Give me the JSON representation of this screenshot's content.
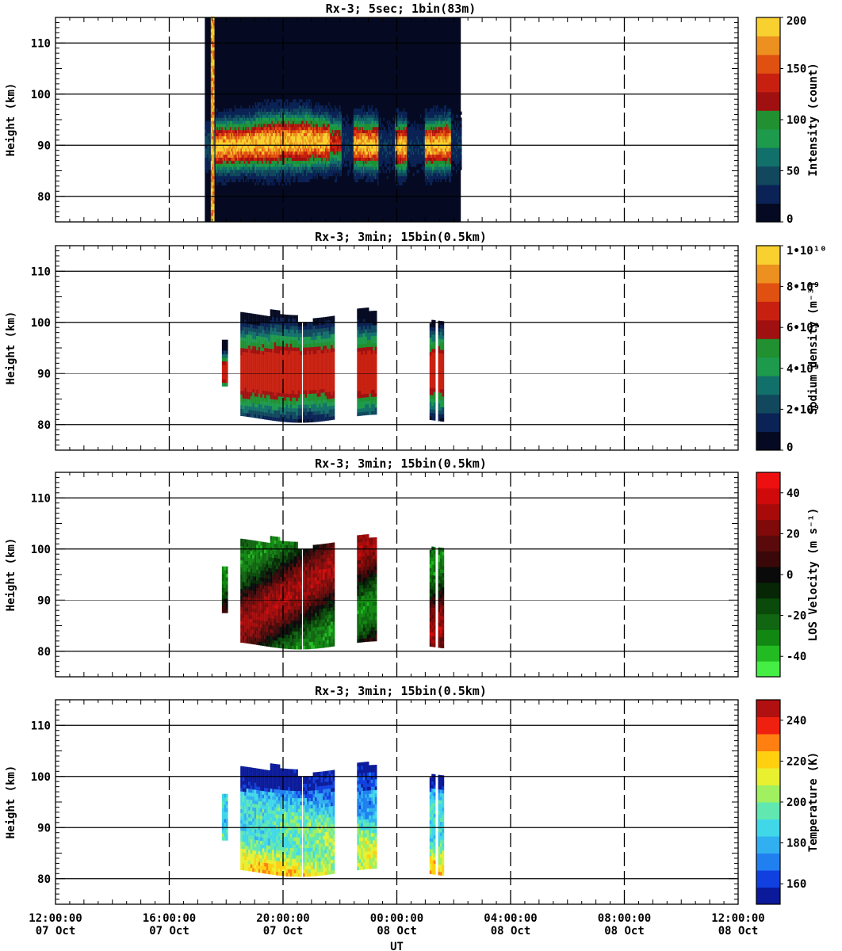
{
  "chart_data": [
    {
      "type": "heatmap",
      "title": "Rx-3;  5sec; 1bin(83m)",
      "ylabel": "Height (km)",
      "ylim": [
        75,
        115
      ],
      "yticks": [
        "80",
        "90",
        "100",
        "110"
      ],
      "colorbar": {
        "label": "Intensity (count)",
        "ticks": [
          "0",
          "50",
          "100",
          "150",
          "200"
        ],
        "range": [
          0,
          200
        ],
        "colors": [
          "#050a22",
          "#0a2255",
          "#11485e",
          "#12706a",
          "#1d9a4c",
          "#209030",
          "#a01010",
          "#c82010",
          "#e05010",
          "#ec9020",
          "#f8d030"
        ]
      },
      "data_extent": {
        "t_start_h": 5.25,
        "t_end_h": 14.25
      },
      "layer": {
        "center_km": 90,
        "half_width_km": 5
      },
      "segments_h": [
        [
          5.25,
          14.25
        ]
      ]
    },
    {
      "type": "heatmap",
      "title": "Rx-3; 3min; 15bin(0.5km)",
      "ylabel": "Height (km)",
      "ylim": [
        75,
        115
      ],
      "yticks": [
        "80",
        "90",
        "100",
        "110"
      ],
      "colorbar": {
        "label": "Sodium density (m⁻³)",
        "ticks": [
          "0",
          "2•10⁹",
          "4•10⁹",
          "6•10⁹",
          "8•10⁹",
          "1•10¹⁰"
        ],
        "range": [
          0,
          10000000000
        ],
        "colors": [
          "#050a22",
          "#0a2255",
          "#11485e",
          "#12706a",
          "#1d9a4c",
          "#209030",
          "#a01010",
          "#c82010",
          "#e05010",
          "#ec9020",
          "#f8d030"
        ]
      },
      "segments_h": [
        [
          5.85,
          6.0
        ],
        [
          6.5,
          8.65
        ],
        [
          8.7,
          9.8
        ],
        [
          10.6,
          11.25
        ],
        [
          13.15,
          13.35
        ],
        [
          13.45,
          13.65
        ]
      ],
      "layer": {
        "center_km": 90,
        "top_km": 101,
        "bottom_km": 82
      }
    },
    {
      "type": "heatmap",
      "title": "Rx-3; 3min; 15bin(0.5km)",
      "ylabel": "Height (km)",
      "ylim": [
        75,
        115
      ],
      "yticks": [
        "80",
        "90",
        "100",
        "110"
      ],
      "colorbar": {
        "label": "LOS Velocity (m s⁻¹)",
        "ticks": [
          "-40",
          "-20",
          "0",
          "20",
          "40"
        ],
        "range": [
          -50,
          50
        ],
        "colors": [
          "#44ee44",
          "#22bb22",
          "#118811",
          "#116611",
          "#0a4a0a",
          "#062606",
          "#0a0a0a",
          "#3a0808",
          "#5a0a0a",
          "#800a0a",
          "#a80a0a",
          "#d00a0a",
          "#ee1010"
        ]
      },
      "segments_h": [
        [
          5.85,
          6.0
        ],
        [
          6.5,
          8.65
        ],
        [
          8.7,
          9.8
        ],
        [
          10.6,
          11.25
        ],
        [
          13.15,
          13.35
        ],
        [
          13.45,
          13.65
        ]
      ],
      "layer": {
        "center_km": 91,
        "top_km": 101,
        "bottom_km": 82
      }
    },
    {
      "type": "heatmap",
      "title": "Rx-3; 3min; 15bin(0.5km)",
      "ylabel": "Height (km)",
      "ylim": [
        75,
        115
      ],
      "yticks": [
        "80",
        "90",
        "100",
        "110"
      ],
      "colorbar": {
        "label": "Temperature (K)",
        "ticks": [
          "160",
          "180",
          "200",
          "220",
          "240"
        ],
        "range": [
          150,
          250
        ],
        "colors": [
          "#0a1a9a",
          "#1040e0",
          "#2080f0",
          "#30b0f0",
          "#40d8e8",
          "#60e8b0",
          "#a0f060",
          "#e8f030",
          "#ffd010",
          "#ff8010",
          "#f02010",
          "#b01010"
        ]
      },
      "segments_h": [
        [
          5.85,
          6.0
        ],
        [
          6.5,
          8.65
        ],
        [
          8.7,
          9.8
        ],
        [
          10.6,
          11.25
        ],
        [
          13.15,
          13.35
        ],
        [
          13.45,
          13.65
        ]
      ],
      "layer": {
        "center_km": 91,
        "top_km": 101,
        "bottom_km": 82
      }
    }
  ],
  "x_axis": {
    "label": "UT",
    "range_h": [
      0,
      24
    ],
    "ticks": [
      {
        "t": 0,
        "time": "12:00:00",
        "date": "07 Oct"
      },
      {
        "t": 4,
        "time": "16:00:00",
        "date": "07 Oct"
      },
      {
        "t": 8,
        "time": "20:00:00",
        "date": "07 Oct"
      },
      {
        "t": 12,
        "time": "00:00:00",
        "date": "08 Oct"
      },
      {
        "t": 16,
        "time": "04:00:00",
        "date": "08 Oct"
      },
      {
        "t": 20,
        "time": "08:00:00",
        "date": "08 Oct"
      },
      {
        "t": 24,
        "time": "12:00:00",
        "date": "08 Oct"
      }
    ]
  }
}
